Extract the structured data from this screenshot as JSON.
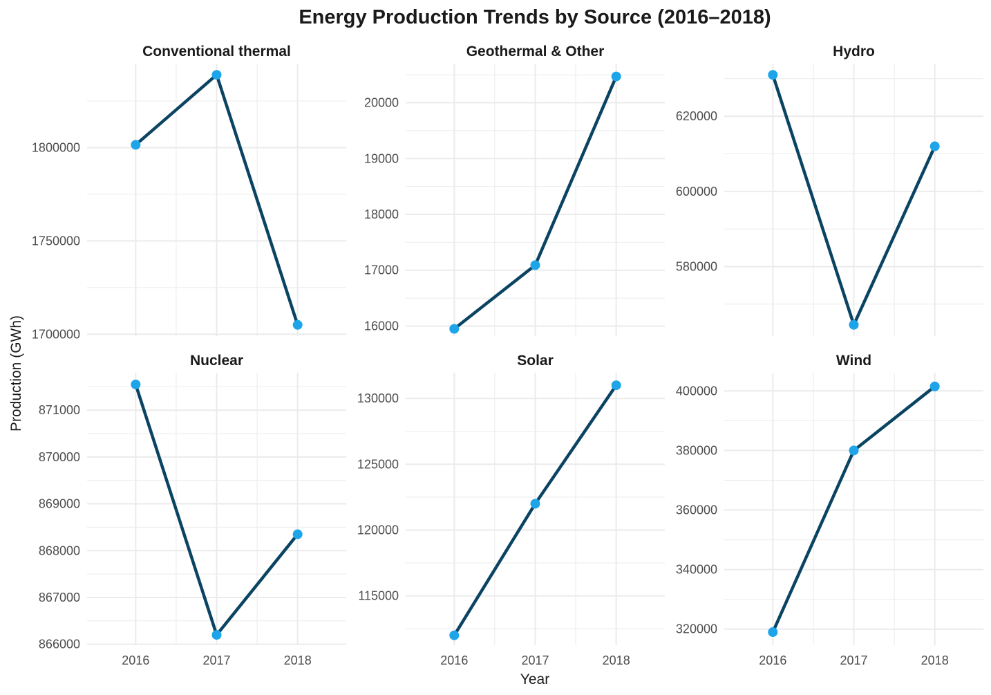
{
  "title": "Energy Production Trends by Source (2016–2018)",
  "xlabel": "Year",
  "ylabel": "Production (GWh)",
  "colors": {
    "line": "#0b4463",
    "point": "#1ea5e9",
    "grid": "#ebebeb"
  },
  "chart_data": [
    {
      "type": "line",
      "title": "Conventional thermal",
      "x": [
        2016,
        2017,
        2018
      ],
      "values": [
        1801500,
        1839000,
        1705000
      ],
      "yticks": [
        1700000,
        1750000,
        1800000
      ],
      "ylim": [
        1699000,
        1845000
      ]
    },
    {
      "type": "line",
      "title": "Geothermal & Other",
      "x": [
        2016,
        2017,
        2018
      ],
      "values": [
        15950,
        17090,
        20470
      ],
      "yticks": [
        16000,
        17000,
        18000,
        19000,
        20000
      ],
      "ylim": [
        15820,
        20700
      ]
    },
    {
      "type": "line",
      "title": "Hydro",
      "x": [
        2016,
        2017,
        2018
      ],
      "values": [
        631000,
        564500,
        612000
      ],
      "yticks": [
        580000,
        600000,
        620000
      ],
      "ylim": [
        561500,
        634000
      ]
    },
    {
      "type": "line",
      "title": "Nuclear",
      "x": [
        2016,
        2017,
        2018
      ],
      "values": [
        871550,
        866200,
        868350
      ],
      "yticks": [
        866000,
        867000,
        868000,
        869000,
        870000,
        871000
      ],
      "ylim": [
        865980,
        871800
      ]
    },
    {
      "type": "line",
      "title": "Solar",
      "x": [
        2016,
        2017,
        2018
      ],
      "values": [
        112000,
        122000,
        131000
      ],
      "yticks": [
        115000,
        120000,
        125000,
        130000
      ],
      "ylim": [
        111250,
        131950
      ]
    },
    {
      "type": "line",
      "title": "Wind",
      "x": [
        2016,
        2017,
        2018
      ],
      "values": [
        319000,
        380000,
        401500
      ],
      "yticks": [
        320000,
        340000,
        360000,
        380000,
        400000
      ],
      "ylim": [
        314600,
        406100
      ]
    }
  ]
}
